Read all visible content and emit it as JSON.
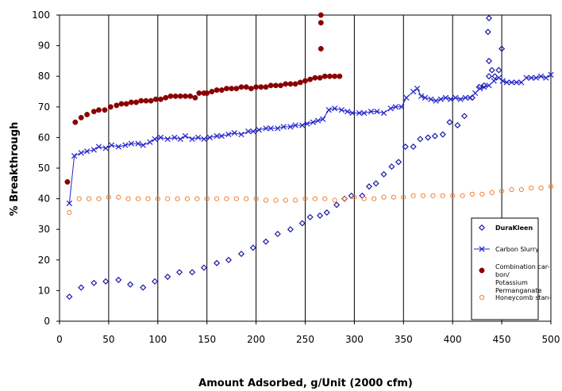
{
  "chart_data": {
    "type": "scatter",
    "title": "",
    "xlabel": "Amount Adsorbed, g/Unit (2000 cfm)",
    "ylabel": "% Breakthrough",
    "xlim": [
      0,
      500
    ],
    "ylim": [
      0,
      100
    ],
    "xticks": [
      0,
      50,
      100,
      150,
      200,
      250,
      300,
      350,
      400,
      450,
      500
    ],
    "yticks": [
      0,
      10,
      20,
      30,
      40,
      50,
      60,
      70,
      80,
      90,
      100
    ],
    "grid": "vertical",
    "legend_position": "bottom-right",
    "series": [
      {
        "name": "DuraKleen",
        "color": "#1a1aa6",
        "marker": "diamond-open",
        "bold_label": true,
        "points": [
          [
            10,
            8
          ],
          [
            22,
            11
          ],
          [
            35,
            12.5
          ],
          [
            47,
            13
          ],
          [
            60,
            13.5
          ],
          [
            72,
            12
          ],
          [
            85,
            11
          ],
          [
            97,
            13
          ],
          [
            110,
            14.5
          ],
          [
            122,
            16
          ],
          [
            135,
            16
          ],
          [
            147,
            17.5
          ],
          [
            160,
            19
          ],
          [
            172,
            20
          ],
          [
            185,
            22
          ],
          [
            197,
            24
          ],
          [
            210,
            26
          ],
          [
            222,
            28.5
          ],
          [
            235,
            30
          ],
          [
            247,
            32
          ],
          [
            255,
            34
          ],
          [
            265,
            34.5
          ],
          [
            272,
            35.5
          ],
          [
            282,
            38
          ],
          [
            290,
            40
          ],
          [
            297,
            41
          ],
          [
            308,
            41
          ],
          [
            315,
            44
          ],
          [
            322,
            45
          ],
          [
            330,
            48
          ],
          [
            338,
            50.5
          ],
          [
            345,
            52
          ],
          [
            352,
            57
          ],
          [
            360,
            57
          ],
          [
            367,
            59.5
          ],
          [
            375,
            60
          ],
          [
            382,
            60.5
          ],
          [
            390,
            61
          ],
          [
            397,
            65
          ],
          [
            405,
            64
          ],
          [
            412,
            67
          ],
          [
            420,
            73
          ],
          [
            427,
            76.5
          ],
          [
            432,
            77
          ],
          [
            437,
            80
          ],
          [
            440,
            82
          ],
          [
            443,
            80
          ],
          [
            447,
            82
          ],
          [
            450,
            89
          ],
          [
            437,
            85
          ],
          [
            436,
            94.5
          ],
          [
            437,
            99
          ]
        ]
      },
      {
        "name": "Carbon Slurry",
        "color": "#2222cc",
        "marker": "x-line",
        "bold_label": false,
        "points": [
          [
            10,
            38.5
          ],
          [
            15,
            54
          ],
          [
            22,
            55
          ],
          [
            28,
            55.5
          ],
          [
            35,
            56
          ],
          [
            40,
            57
          ],
          [
            47,
            56.5
          ],
          [
            53,
            57.5
          ],
          [
            60,
            57
          ],
          [
            67,
            57.5
          ],
          [
            73,
            58
          ],
          [
            80,
            58
          ],
          [
            85,
            57.5
          ],
          [
            92,
            58.5
          ],
          [
            97,
            59.5
          ],
          [
            103,
            60
          ],
          [
            110,
            59.5
          ],
          [
            117,
            60
          ],
          [
            123,
            59.5
          ],
          [
            128,
            60.5
          ],
          [
            135,
            59.5
          ],
          [
            141,
            60
          ],
          [
            147,
            59.5
          ],
          [
            153,
            60
          ],
          [
            160,
            60.5
          ],
          [
            165,
            60.5
          ],
          [
            172,
            61
          ],
          [
            178,
            61.5
          ],
          [
            185,
            61
          ],
          [
            192,
            62
          ],
          [
            197,
            62
          ],
          [
            203,
            62.5
          ],
          [
            210,
            63
          ],
          [
            215,
            63
          ],
          [
            222,
            63
          ],
          [
            228,
            63.5
          ],
          [
            235,
            63.5
          ],
          [
            240,
            64
          ],
          [
            247,
            64
          ],
          [
            252,
            64.5
          ],
          [
            258,
            65
          ],
          [
            263,
            65.5
          ],
          [
            268,
            66
          ],
          [
            274,
            69
          ],
          [
            280,
            69.5
          ],
          [
            287,
            69
          ],
          [
            293,
            68.5
          ],
          [
            298,
            68
          ],
          [
            305,
            68
          ],
          [
            310,
            68
          ],
          [
            317,
            68.5
          ],
          [
            323,
            68.5
          ],
          [
            330,
            68
          ],
          [
            337,
            69.5
          ],
          [
            342,
            70
          ],
          [
            348,
            70
          ],
          [
            353,
            73
          ],
          [
            360,
            75
          ],
          [
            364,
            76
          ],
          [
            368,
            73.5
          ],
          [
            372,
            73
          ],
          [
            378,
            72.5
          ],
          [
            383,
            72
          ],
          [
            388,
            72.5
          ],
          [
            393,
            73
          ],
          [
            398,
            72.5
          ],
          [
            403,
            73
          ],
          [
            408,
            72.5
          ],
          [
            413,
            73
          ],
          [
            418,
            73
          ],
          [
            423,
            74.5
          ],
          [
            428,
            76
          ],
          [
            432,
            76.5
          ],
          [
            437,
            77
          ],
          [
            442,
            78.5
          ],
          [
            447,
            79.5
          ],
          [
            451,
            78.5
          ],
          [
            455,
            78
          ],
          [
            460,
            78
          ],
          [
            465,
            78
          ],
          [
            470,
            78
          ],
          [
            475,
            79.5
          ],
          [
            480,
            79.5
          ],
          [
            485,
            79.5
          ],
          [
            490,
            80
          ],
          [
            495,
            79.5
          ],
          [
            500,
            80.5
          ]
        ]
      },
      {
        "name": "Combination carbon/ Potassium Permanganate",
        "label_lines": [
          "Combination car-",
          "bon/",
          "Potassium",
          "Permanganate"
        ],
        "color": "#8b0000",
        "marker": "dot-filled",
        "bold_label": false,
        "points": [
          [
            8,
            45.5
          ],
          [
            16,
            65
          ],
          [
            22,
            66.5
          ],
          [
            28,
            67.5
          ],
          [
            35,
            68.5
          ],
          [
            40,
            69
          ],
          [
            46,
            69
          ],
          [
            52,
            70
          ],
          [
            58,
            70.5
          ],
          [
            63,
            71
          ],
          [
            68,
            71
          ],
          [
            73,
            71.5
          ],
          [
            78,
            71.5
          ],
          [
            83,
            72
          ],
          [
            88,
            72
          ],
          [
            93,
            72
          ],
          [
            98,
            72.5
          ],
          [
            103,
            72.5
          ],
          [
            108,
            73
          ],
          [
            113,
            73.5
          ],
          [
            118,
            73.5
          ],
          [
            123,
            73.5
          ],
          [
            128,
            73.5
          ],
          [
            133,
            73.5
          ],
          [
            138,
            73
          ],
          [
            142,
            74.5
          ],
          [
            147,
            74.5
          ],
          [
            150,
            74.5
          ],
          [
            155,
            75
          ],
          [
            160,
            75.5
          ],
          [
            165,
            75.5
          ],
          [
            170,
            76
          ],
          [
            175,
            76
          ],
          [
            180,
            76
          ],
          [
            185,
            76.5
          ],
          [
            190,
            76.5
          ],
          [
            195,
            76
          ],
          [
            200,
            76.5
          ],
          [
            205,
            76.5
          ],
          [
            210,
            76.5
          ],
          [
            215,
            77
          ],
          [
            220,
            77
          ],
          [
            225,
            77
          ],
          [
            230,
            77.5
          ],
          [
            235,
            77.5
          ],
          [
            240,
            77.5
          ],
          [
            245,
            78
          ],
          [
            250,
            78.5
          ],
          [
            255,
            79
          ],
          [
            260,
            79.5
          ],
          [
            265,
            79.5
          ],
          [
            270,
            80
          ],
          [
            275,
            80
          ],
          [
            280,
            80
          ],
          [
            285,
            80
          ],
          [
            266,
            89
          ],
          [
            266,
            97.5
          ],
          [
            266,
            100
          ]
        ]
      },
      {
        "name": "Honeycomb standard",
        "label_lines": [
          "Honeycomb stan-"
        ],
        "color": "#f08030",
        "marker": "circle-open",
        "bold_label": false,
        "points": [
          [
            10,
            35.5
          ],
          [
            20,
            40
          ],
          [
            30,
            40
          ],
          [
            40,
            40
          ],
          [
            50,
            40.5
          ],
          [
            60,
            40.5
          ],
          [
            70,
            40
          ],
          [
            80,
            40
          ],
          [
            90,
            40
          ],
          [
            100,
            40
          ],
          [
            110,
            40
          ],
          [
            120,
            40
          ],
          [
            130,
            40
          ],
          [
            140,
            40
          ],
          [
            150,
            40
          ],
          [
            160,
            40
          ],
          [
            170,
            40
          ],
          [
            180,
            40
          ],
          [
            190,
            40
          ],
          [
            200,
            40
          ],
          [
            210,
            39.5
          ],
          [
            220,
            39.5
          ],
          [
            230,
            39.5
          ],
          [
            240,
            39.5
          ],
          [
            250,
            40
          ],
          [
            260,
            40
          ],
          [
            270,
            40
          ],
          [
            280,
            39.5
          ],
          [
            290,
            40
          ],
          [
            300,
            40.5
          ],
          [
            310,
            40
          ],
          [
            320,
            40
          ],
          [
            330,
            40.5
          ],
          [
            340,
            40.5
          ],
          [
            350,
            40.5
          ],
          [
            360,
            41
          ],
          [
            370,
            41
          ],
          [
            380,
            41
          ],
          [
            390,
            41
          ],
          [
            400,
            41
          ],
          [
            410,
            41
          ],
          [
            420,
            41.5
          ],
          [
            430,
            41.5
          ],
          [
            440,
            42
          ],
          [
            450,
            42.5
          ],
          [
            460,
            43
          ],
          [
            470,
            43
          ],
          [
            480,
            43.5
          ],
          [
            490,
            43.5
          ],
          [
            500,
            44
          ]
        ]
      }
    ]
  }
}
